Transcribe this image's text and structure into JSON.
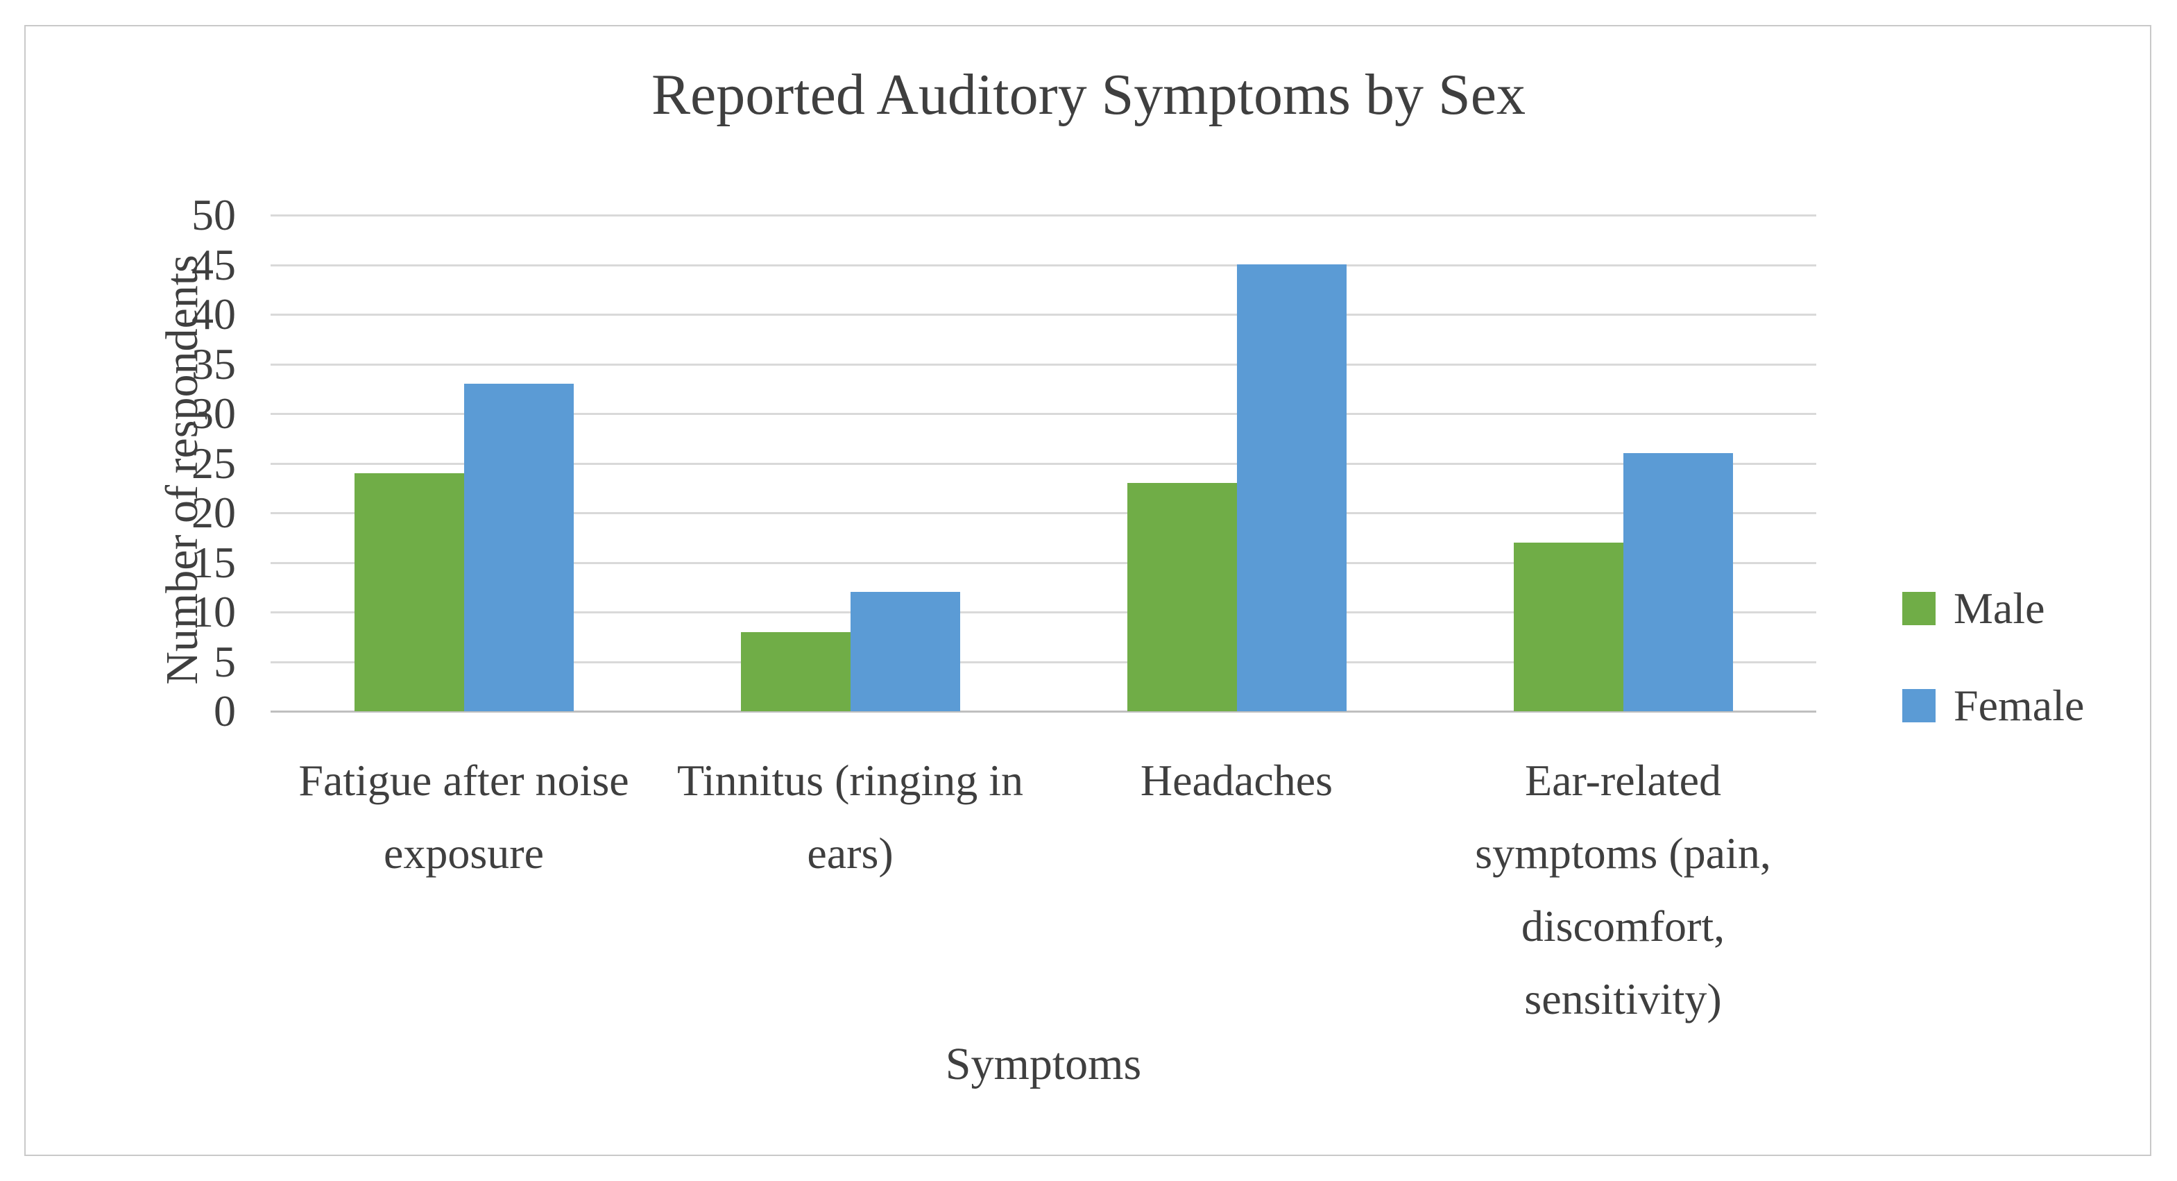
{
  "chart_data": {
    "type": "bar",
    "title": "Reported Auditory Symptoms by Sex",
    "xlabel": "Symptoms",
    "ylabel": "Number of respondents",
    "categories": [
      "Fatigue after noise exposure",
      "Tinnitus (ringing in ears)",
      "Headaches",
      "Ear-related symptoms (pain, discomfort, sensitivity)"
    ],
    "series": [
      {
        "name": "Male",
        "color": "#70ad47",
        "values": [
          24,
          8,
          23,
          17
        ]
      },
      {
        "name": "Female",
        "color": "#5b9bd5",
        "values": [
          33,
          12,
          45,
          26
        ]
      }
    ],
    "ylim": [
      0,
      50
    ],
    "ytick_step": 5,
    "ytick_labels": [
      "0",
      "5",
      "10",
      "15",
      "20",
      "25",
      "30",
      "35",
      "40",
      "45",
      "50"
    ],
    "grid": true,
    "legend_position": "right",
    "legend_labels": [
      "Male",
      "Female"
    ]
  },
  "colors": {
    "male": "#70ad47",
    "female": "#5b9bd5",
    "gridline": "#d9d9d9",
    "axis_line": "#bfbfbf",
    "text": "#3f3f3f",
    "frame_border": "#c9c9c9",
    "background": "#ffffff"
  }
}
